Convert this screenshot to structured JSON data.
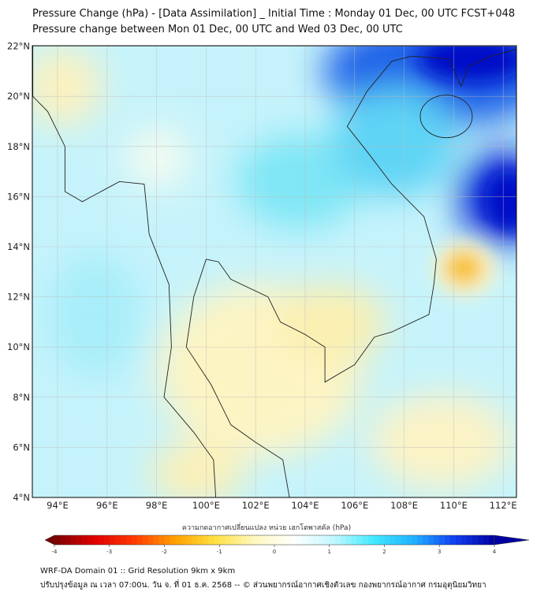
{
  "title": {
    "line1": "Pressure Change (hPa) - [Data Assimilation] _ Initial Time : Monday 01 Dec, 00 UTC FCST+048",
    "line2": "Pressure change between Mon 01 Dec, 00 UTC and Wed 03 Dec, 00 UTC"
  },
  "map": {
    "lat_labels": [
      "4°N",
      "6°N",
      "8°N",
      "10°N",
      "12°N",
      "14°N",
      "16°N",
      "18°N",
      "20°N",
      "22°N"
    ],
    "lon_labels": [
      "94°E",
      "96°E",
      "98°E",
      "100°E",
      "102°E",
      "104°E",
      "106°E",
      "108°E",
      "110°E",
      "112°E"
    ],
    "lat_range": [
      4,
      22
    ],
    "lon_range": [
      93,
      112.5
    ]
  },
  "colorbar": {
    "label": "ความกดอากาศเปลี่ยนแปลง หน่วย เฮกโตพาสคัล (hPa)",
    "ticks": [
      "-4",
      "-3",
      "-2",
      "-1",
      "0",
      "1",
      "2",
      "3",
      "4"
    ],
    "range": [
      -4,
      4
    ],
    "colors": [
      "#7a0000",
      "#e00000",
      "#ff3a00",
      "#ffa000",
      "#ffe040",
      "#fff8c0",
      "#ffffff",
      "#c0f8ff",
      "#40e8ff",
      "#20b0ff",
      "#1040f0",
      "#0000a0"
    ]
  },
  "footer": {
    "line1": "WRF-DA Domain 01 :: Grid Resolution 9km x 9km",
    "line2": "ปรับปรุงข้อมูล ณ เวลา 07:00น. วัน จ. ที่ 01 ธ.ค. 2568 -- © ส่วนพยากรณ์อากาศเชิงตัวเลข กองพยากรณ์อากาศ กรมอุตุนิยมวิทยา"
  }
}
